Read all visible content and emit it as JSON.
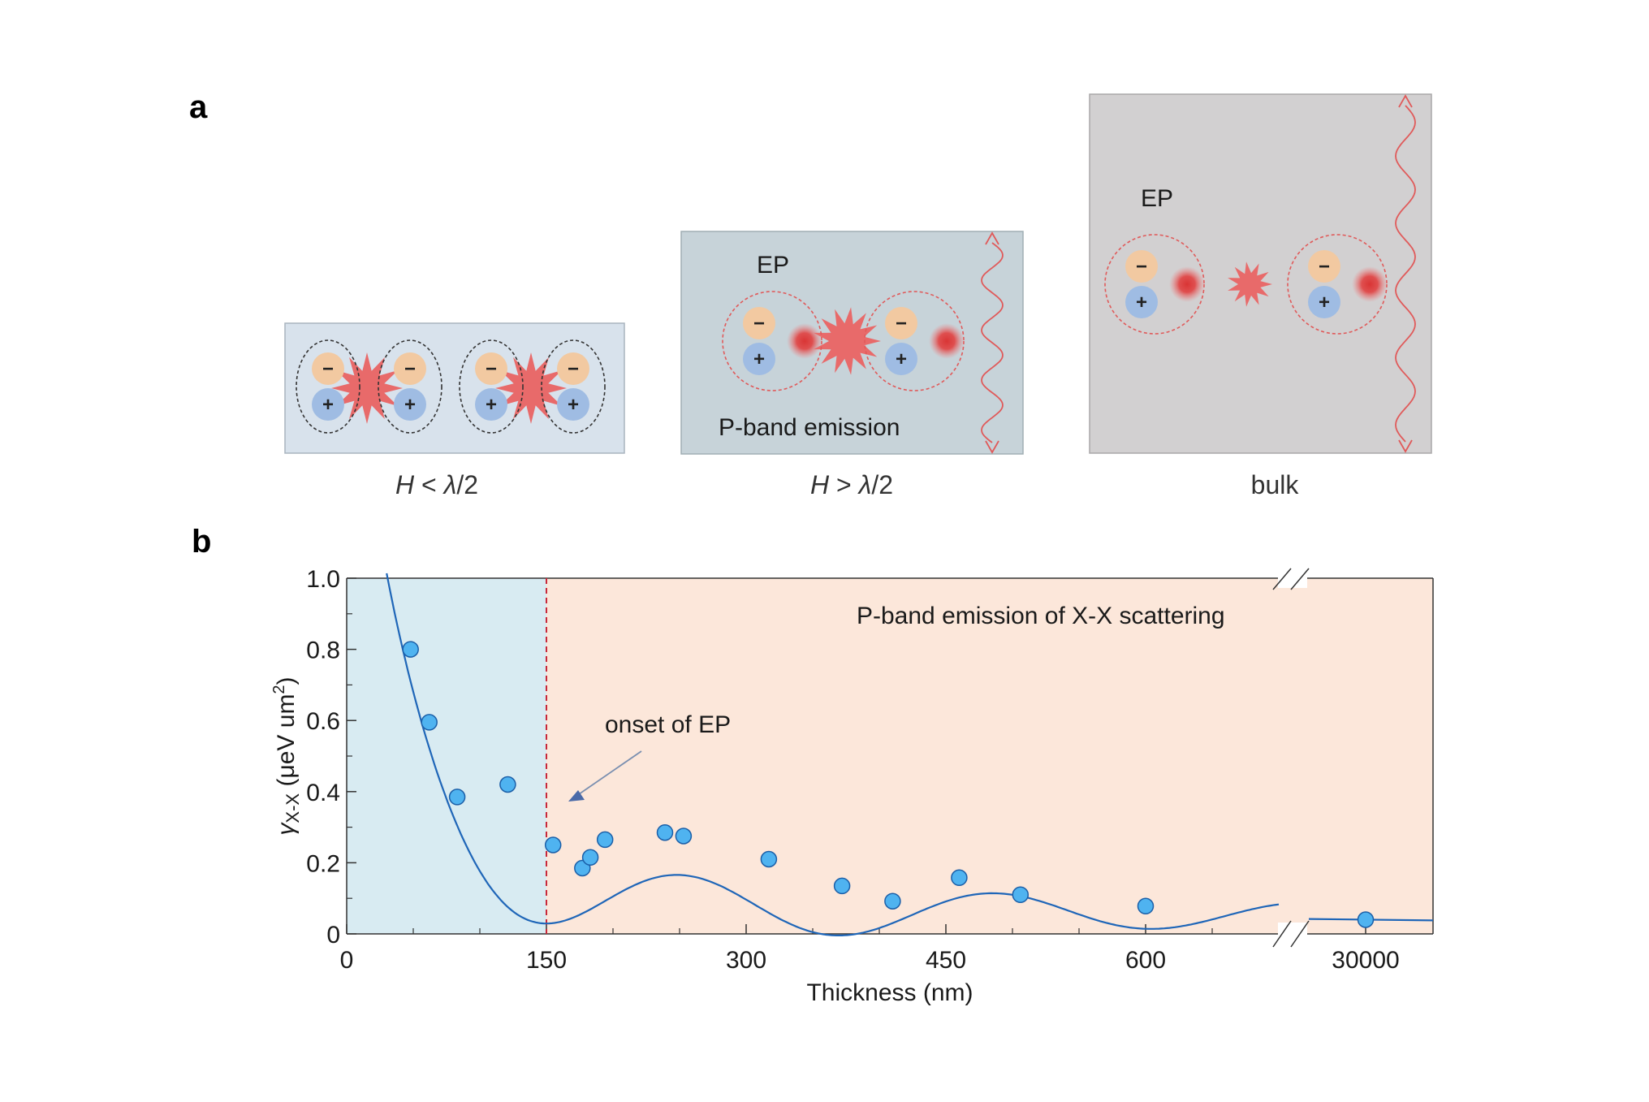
{
  "panel_a": {
    "letter": "a",
    "boxes": [
      {
        "caption_var": "H",
        "caption_rest": " < ",
        "caption_lambda": "λ",
        "caption_tail": "/2",
        "label": "",
        "emission_label": ""
      },
      {
        "caption_var": "H",
        "caption_rest": " > ",
        "caption_lambda": "λ",
        "caption_tail": "/2",
        "label": "EP",
        "emission_label": "P-band emission"
      },
      {
        "caption_var": "",
        "caption_rest": "bulk",
        "caption_lambda": "",
        "caption_tail": "",
        "label": "EP",
        "emission_label": ""
      }
    ],
    "signs": {
      "minus": "−",
      "plus": "+"
    },
    "colors": {
      "box1": "#d8e2ec",
      "box2": "#c7d3d9",
      "box3": "#d2d0d1",
      "electron": "#f2c9a1",
      "hole": "#9fbce3",
      "photon": "#e05a5a",
      "burst": "#e86a6a"
    }
  },
  "panel_b": {
    "letter": "b",
    "annotation": "P-band emission of X-X scattering",
    "arrow_label": "onset of EP",
    "colors": {
      "left_region": "#d8ebf2",
      "right_region": "#fce7da",
      "marker": "#4fb3f0",
      "curve": "#1f66b8",
      "onset_line": "#c8283a"
    }
  },
  "chart_data": {
    "type": "scatter",
    "xlabel": "Thickness (nm)",
    "ylabel_symbol": "γ",
    "ylabel_sub": "X-X",
    "ylabel_unit": " (μeV um",
    "ylabel_sup": "2",
    "ylabel_close": ")",
    "ylim": [
      0,
      1.0
    ],
    "xlim_main": [
      0,
      700
    ],
    "x_break_segment": [
      29900,
      30050
    ],
    "x_ticks": [
      0,
      150,
      300,
      450,
      600,
      30000
    ],
    "x_tick_labels": [
      "0",
      "150",
      "300",
      "450",
      "600",
      "30000"
    ],
    "y_ticks": [
      0,
      0.2,
      0.4,
      0.6,
      0.8,
      1.0
    ],
    "y_tick_labels": [
      "0",
      "0.2",
      "0.4",
      "0.6",
      "0.8",
      "1.0"
    ],
    "onset_x": 150,
    "points": [
      {
        "x": 48,
        "y": 0.8
      },
      {
        "x": 62,
        "y": 0.595
      },
      {
        "x": 83,
        "y": 0.385
      },
      {
        "x": 121,
        "y": 0.42
      },
      {
        "x": 155,
        "y": 0.25
      },
      {
        "x": 177,
        "y": 0.185
      },
      {
        "x": 183,
        "y": 0.215
      },
      {
        "x": 194,
        "y": 0.265
      },
      {
        "x": 239,
        "y": 0.285
      },
      {
        "x": 253,
        "y": 0.275
      },
      {
        "x": 317,
        "y": 0.21
      },
      {
        "x": 372,
        "y": 0.135
      },
      {
        "x": 410,
        "y": 0.092
      },
      {
        "x": 460,
        "y": 0.158
      },
      {
        "x": 506,
        "y": 0.11
      },
      {
        "x": 600,
        "y": 0.078
      },
      {
        "x": 30000,
        "y": 0.04
      }
    ]
  }
}
